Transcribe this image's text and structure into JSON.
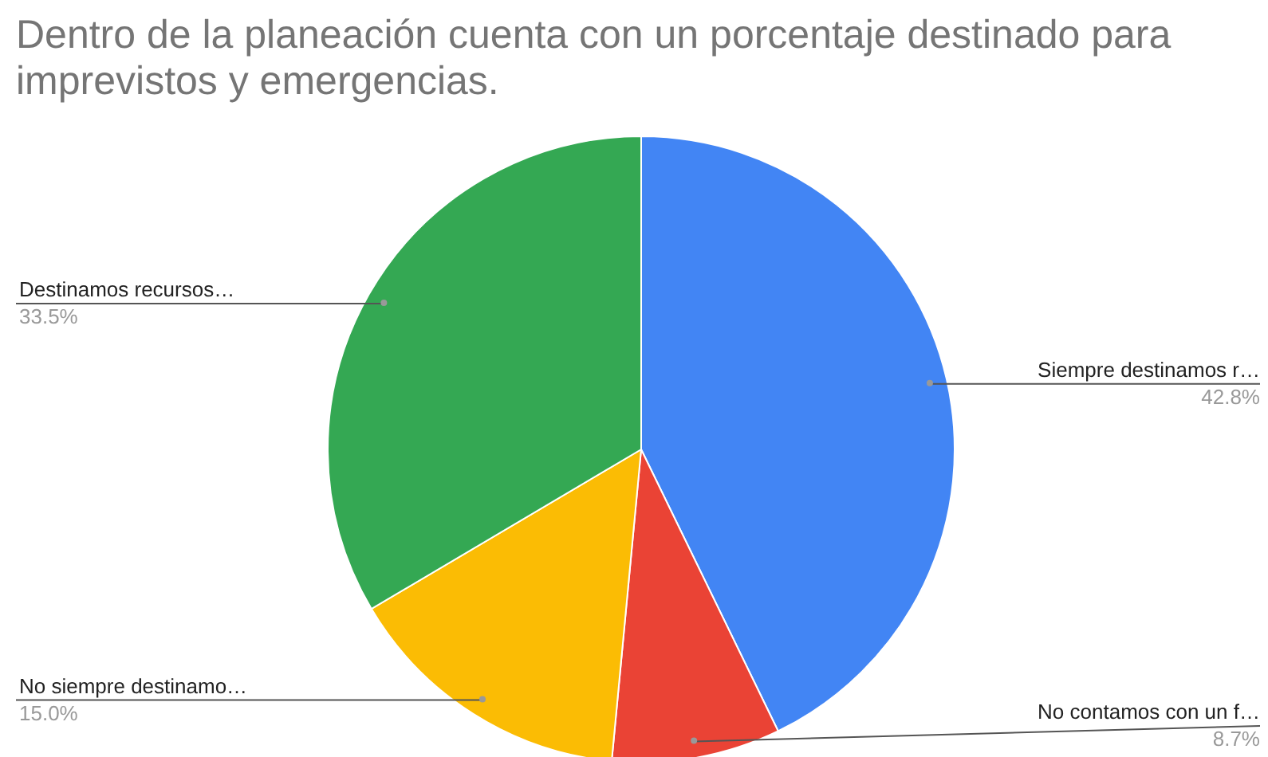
{
  "chart_data": {
    "type": "pie",
    "title": "Dentro de la planeación cuenta con un porcentaje destinado para imprevistos y emergencias.",
    "categories": [
      "Siempre destinamos r…",
      "No contamos con un f…",
      "No siempre destinamo…",
      "Destinamos recursos…"
    ],
    "values": [
      42.8,
      8.7,
      15.0,
      33.5
    ],
    "colors": [
      "#4285f4",
      "#ea4335",
      "#fbbc04",
      "#34a853"
    ],
    "value_labels": [
      "42.8%",
      "8.7%",
      "15.0%",
      "33.5%"
    ],
    "legend": false
  }
}
